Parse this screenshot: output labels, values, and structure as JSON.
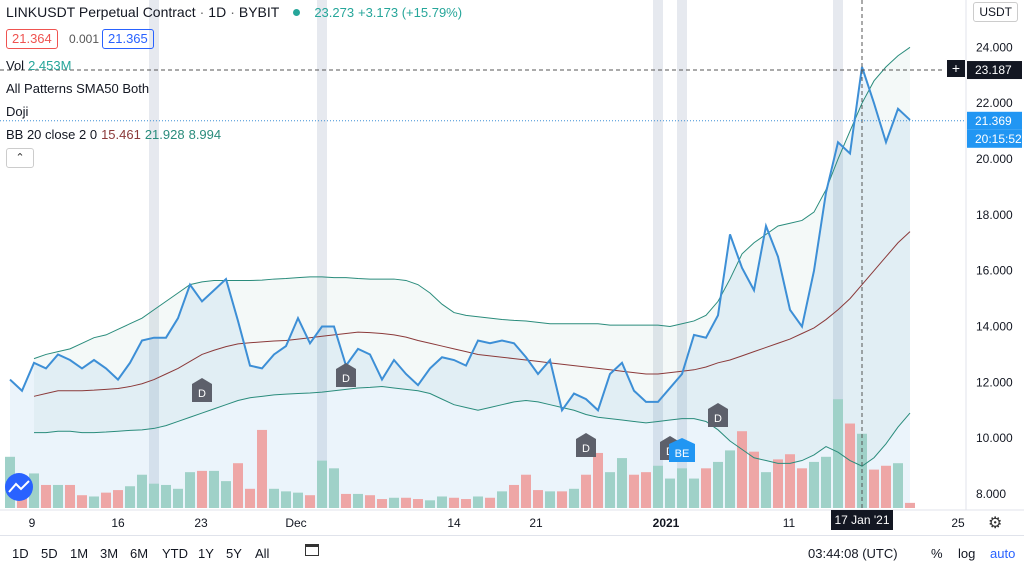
{
  "header": {
    "symbol": "LINKUSDT Perpetual Contract",
    "interval": "1D",
    "exchange": "BYBIT",
    "last": "23.273",
    "change": "+3.173 (+15.79%)",
    "sell_price": "21.364",
    "spread": "0.001",
    "buy_price": "21.365"
  },
  "indicators": {
    "vol_label": "Vol",
    "vol_value": "2.453M",
    "patterns": "All Patterns SMA50 Both",
    "doji": "Doji",
    "bb_label": "BB 20 close 2 0",
    "bb_mid": "15.461",
    "bb_upper": "21.928",
    "bb_lower": "8.994"
  },
  "currency_button": "USDT",
  "crosshair_price": "23.187",
  "current_price": "21.369",
  "countdown": "20:15:52",
  "crosshair_date": "17 Jan '21",
  "bottom_bar": {
    "ranges": [
      "1D",
      "5D",
      "1M",
      "3M",
      "6M",
      "YTD",
      "1Y",
      "5Y",
      "All"
    ],
    "clock": "03:44:08 (UTC)",
    "percent": "%",
    "log": "log",
    "auto": "auto"
  },
  "colors": {
    "price_line": "#3d8fd6",
    "band": "#2a8c7c",
    "sma": "#8b3a3a",
    "vol_up": "#9fd1c8",
    "vol_down": "#eea6a6",
    "highlight": "#e6e9ef"
  },
  "chart_data": {
    "type": "line",
    "x_ticks": [
      "9",
      "16",
      "23",
      "Dec",
      "14",
      "21",
      "2021",
      "11",
      "17 Jan '21",
      "25"
    ],
    "y_ticks": [
      "8.000",
      "10.000",
      "12.000",
      "14.000",
      "16.000",
      "18.000",
      "20.000",
      "22.000",
      "24.000"
    ],
    "ylim": [
      7.5,
      24.8
    ],
    "grid": false,
    "series": [
      {
        "values": [
          12.1,
          11.7,
          12.7,
          12.5,
          13.0,
          12.8,
          12.5,
          12.8,
          12.5,
          12.1,
          12.7,
          13.5,
          13.6,
          13.6,
          14.3,
          15.5,
          14.9,
          15.3,
          15.7,
          14.2,
          12.6,
          12.5,
          13.0,
          13.3,
          14.3,
          13.4,
          14.0,
          14.0,
          12.6,
          13.2,
          13.0,
          12.1,
          12.8,
          12.3,
          11.9,
          12.5,
          12.9,
          12.8,
          12.6,
          13.5,
          13.4,
          13.5,
          13.4,
          12.9,
          12.3,
          12.8,
          11.0,
          11.6,
          11.4,
          11.0,
          12.3,
          12.7,
          11.7,
          11.3,
          11.3,
          11.8,
          12.3,
          13.7,
          13.6,
          14.4,
          17.3,
          16.1,
          15.3,
          17.6,
          16.5,
          14.6,
          14.0,
          16.0,
          18.8,
          20.6,
          20.2,
          23.3,
          22.0,
          20.6,
          21.8,
          21.4
        ]
      },
      {
        "name": "BB 20 close 2 0",
        "values": [
          null,
          null,
          12.85,
          13.0,
          13.1,
          13.2,
          13.4,
          13.6,
          13.7,
          13.9,
          14.1,
          14.3,
          14.6,
          14.9,
          15.2,
          15.5,
          15.6,
          15.65,
          15.65,
          15.65,
          15.65,
          15.66,
          15.7,
          15.72,
          15.75,
          15.78,
          15.78,
          15.75,
          15.75,
          15.72,
          15.7,
          15.7,
          15.7,
          15.65,
          15.5,
          15.2,
          14.8,
          14.5,
          14.4,
          14.35,
          14.3,
          14.25,
          14.22,
          14.2,
          14.15,
          14.1,
          14.1,
          14.1,
          14.1,
          14.1,
          14.05,
          14.05,
          14.05,
          14.05,
          14.05,
          14.0,
          14.1,
          14.2,
          14.4,
          14.9,
          15.7,
          16.6,
          17.0,
          17.3,
          17.6,
          17.7,
          17.8,
          18.1,
          18.9,
          20.0,
          21.0,
          22.0,
          22.8,
          23.3,
          23.7,
          24.0
        ]
      },
      {
        "values": [
          null,
          null,
          11.5,
          11.6,
          11.7,
          11.7,
          11.7,
          11.72,
          11.75,
          11.78,
          11.85,
          11.95,
          12.1,
          12.3,
          12.5,
          12.75,
          13.0,
          13.15,
          13.28,
          13.38,
          13.42,
          13.45,
          13.48,
          13.5,
          13.55,
          13.6,
          13.65,
          13.7,
          13.75,
          13.8,
          13.78,
          13.75,
          13.7,
          13.62,
          13.5,
          13.4,
          13.3,
          13.2,
          13.1,
          13.0,
          12.95,
          12.9,
          12.85,
          12.8,
          12.75,
          12.7,
          12.65,
          12.6,
          12.55,
          12.5,
          12.45,
          12.4,
          12.35,
          12.3,
          12.3,
          12.35,
          12.4,
          12.45,
          12.55,
          12.7,
          12.8,
          12.95,
          13.1,
          13.25,
          13.4,
          13.55,
          13.75,
          13.95,
          14.25,
          14.6,
          15.0,
          15.5,
          16.0,
          16.5,
          17.0,
          17.4
        ]
      },
      {
        "values": [
          null,
          null,
          10.2,
          10.2,
          10.25,
          10.25,
          10.2,
          10.2,
          10.22,
          10.25,
          10.28,
          10.3,
          10.35,
          10.45,
          10.6,
          10.75,
          10.9,
          11.05,
          11.2,
          11.35,
          11.45,
          11.5,
          11.55,
          11.58,
          11.6,
          11.62,
          11.65,
          11.7,
          11.75,
          11.8,
          11.82,
          11.85,
          11.8,
          11.75,
          11.7,
          11.6,
          11.4,
          11.2,
          11.1,
          11.0,
          11.1,
          11.2,
          11.3,
          11.35,
          11.3,
          11.2,
          11.1,
          11.0,
          10.85,
          10.75,
          10.7,
          10.65,
          10.6,
          10.55,
          10.6,
          10.65,
          10.7,
          10.7,
          10.6,
          10.3,
          9.9,
          9.6,
          9.3,
          9.2,
          9.1,
          9.1,
          9.2,
          9.4,
          9.7,
          9.5,
          9.2,
          9.0,
          9.3,
          9.8,
          10.4,
          10.9
        ]
      },
      {
        "name": "Vol",
        "values": [
          0.4,
          0.1,
          0.27,
          0.18,
          0.18,
          0.18,
          0.1,
          0.09,
          0.12,
          0.14,
          0.17,
          0.26,
          0.19,
          0.18,
          0.15,
          0.28,
          0.29,
          0.29,
          0.21,
          0.35,
          0.15,
          0.61,
          0.15,
          0.13,
          0.12,
          0.1,
          0.37,
          0.31,
          0.11,
          0.11,
          0.1,
          0.07,
          0.08,
          0.08,
          0.07,
          0.06,
          0.09,
          0.08,
          0.07,
          0.09,
          0.08,
          0.13,
          0.18,
          0.26,
          0.14,
          0.13,
          0.13,
          0.15,
          0.26,
          0.43,
          0.28,
          0.39,
          0.26,
          0.28,
          0.33,
          0.23,
          0.31,
          0.23,
          0.31,
          0.36,
          0.45,
          0.6,
          0.44,
          0.28,
          0.38,
          0.42,
          0.31,
          0.36,
          0.4,
          0.85,
          0.66,
          0.58,
          0.3,
          0.33,
          0.35,
          0.04
        ]
      }
    ],
    "markers": [
      {
        "label": "D",
        "index": 16
      },
      {
        "label": "D",
        "index": 28
      },
      {
        "label": "D",
        "index": 48
      },
      {
        "label": "D",
        "index": 55
      },
      {
        "label": "D",
        "index": 59
      },
      {
        "label": "BE",
        "index": 56
      }
    ]
  }
}
